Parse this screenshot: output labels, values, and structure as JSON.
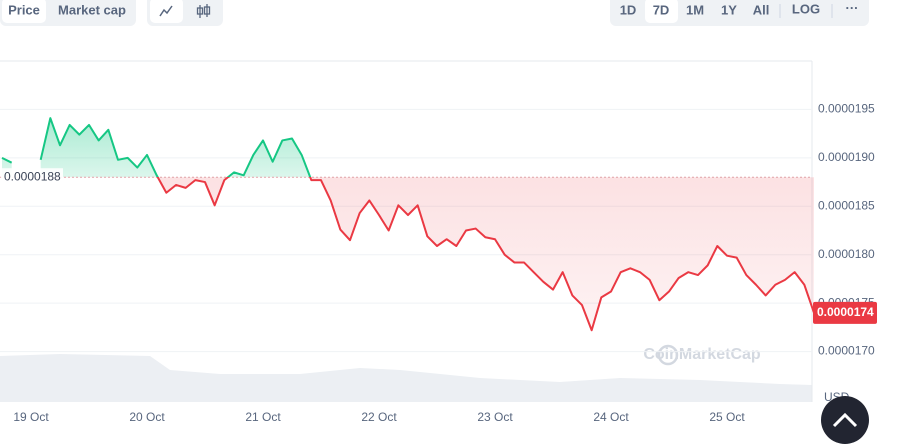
{
  "toolbar": {
    "left_tabs": [
      "Price",
      "Market cap"
    ],
    "range_tabs": [
      "1D",
      "7D",
      "1M",
      "1Y",
      "All"
    ],
    "scale_button": "LOG",
    "more_button": "···"
  },
  "chart_data": {
    "type": "line",
    "categories": [
      null,
      null,
      null,
      "19 Oct",
      null,
      null,
      null,
      null,
      null,
      null,
      null,
      null,
      null,
      null,
      null,
      "20 Oct",
      null,
      null,
      null,
      null,
      null,
      null,
      null,
      null,
      null,
      null,
      null,
      "21 Oct",
      null,
      null,
      null,
      null,
      null,
      null,
      null,
      null,
      null,
      null,
      null,
      "22 Oct",
      null,
      null,
      null,
      null,
      null,
      null,
      null,
      null,
      null,
      null,
      null,
      "23 Oct",
      null,
      null,
      null,
      null,
      null,
      null,
      null,
      null,
      null,
      null,
      null,
      "24 Oct",
      null,
      null,
      null,
      null,
      null,
      null,
      null,
      null,
      null,
      null,
      null,
      "25 Oct",
      null,
      null,
      null,
      null,
      null,
      null,
      null,
      null,
      null
    ],
    "values": [
      1.9e-05,
      1.895e-05,
      null,
      null,
      1.898e-05,
      1.941e-05,
      1.913e-05,
      1.934e-05,
      1.924e-05,
      1.934e-05,
      1.918e-05,
      1.929e-05,
      1.898e-05,
      1.9e-05,
      1.89e-05,
      1.903e-05,
      1.882e-05,
      1.864e-05,
      1.872e-05,
      1.869e-05,
      1.877e-05,
      1.875e-05,
      1.851e-05,
      1.877e-05,
      1.885e-05,
      1.882e-05,
      1.903e-05,
      1.918e-05,
      1.896e-05,
      1.918e-05,
      1.92e-05,
      1.903e-05,
      1.877e-05,
      1.877e-05,
      1.856e-05,
      1.826e-05,
      1.815e-05,
      1.843e-05,
      1.856e-05,
      1.841e-05,
      1.825e-05,
      1.851e-05,
      1.841e-05,
      1.851e-05,
      1.819e-05,
      1.809e-05,
      1.816e-05,
      1.809e-05,
      1.825e-05,
      1.827e-05,
      1.818e-05,
      1.816e-05,
      1.8e-05,
      1.792e-05,
      1.792e-05,
      1.782e-05,
      1.772e-05,
      1.764e-05,
      1.782e-05,
      1.758e-05,
      1.748e-05,
      1.722e-05,
      1.756e-05,
      1.762e-05,
      1.782e-05,
      1.786e-05,
      1.782e-05,
      1.774e-05,
      1.753e-05,
      1.762e-05,
      1.776e-05,
      1.782e-05,
      1.779e-05,
      1.789e-05,
      1.809e-05,
      1.799e-05,
      1.797e-05,
      1.779e-05,
      1.769e-05,
      1.758e-05,
      1.769e-05,
      1.774e-05,
      1.782e-05,
      1.769e-05,
      1.74e-05
    ],
    "up_color": "#16c784",
    "down_color": "#ea3943",
    "reference_value": 1.88e-05,
    "last_price": 1.74e-05,
    "ylim": [
      1.65e-05,
      2e-05
    ],
    "yticks": [
      {
        "value": 1.7e-05,
        "label": "0.0000170"
      },
      {
        "value": 1.75e-05,
        "label": "0.0000175"
      },
      {
        "value": 1.8e-05,
        "label": "0.0000180"
      },
      {
        "value": 1.85e-05,
        "label": "0.0000185"
      },
      {
        "value": 1.9e-05,
        "label": "0.0000190"
      },
      {
        "value": 1.95e-05,
        "label": "0.0000195"
      }
    ],
    "grid": true,
    "currency": "USD",
    "watermark": "CoinMarketCap"
  }
}
